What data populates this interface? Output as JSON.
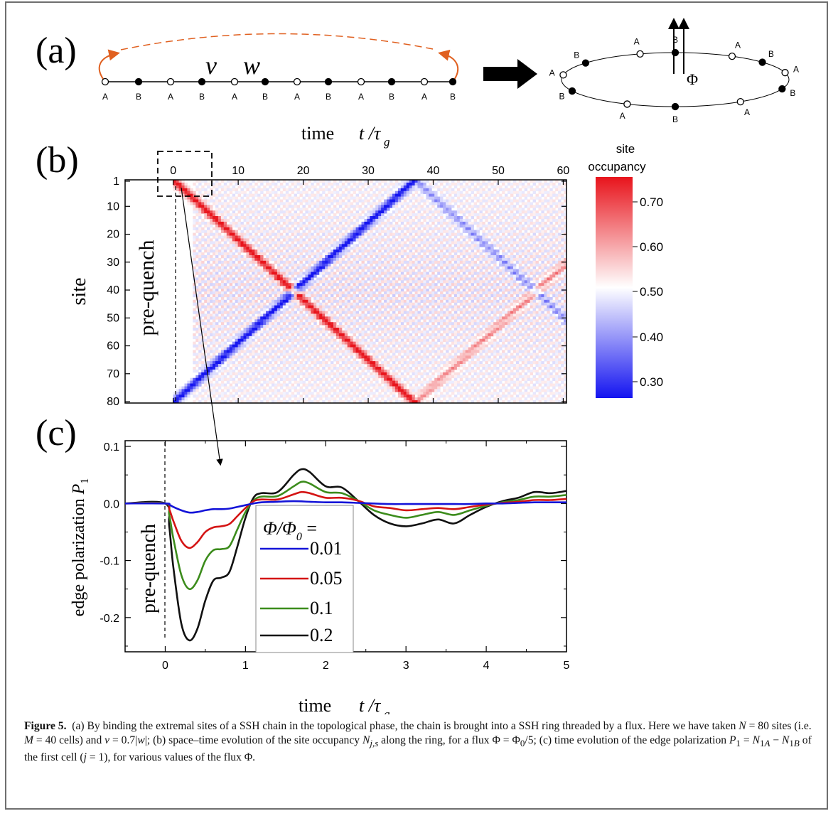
{
  "panel_labels": {
    "a": "(a)",
    "b": "(b)",
    "c": "(c)"
  },
  "panel_a": {
    "chain_sites": [
      "A",
      "B",
      "A",
      "B",
      "A",
      "B",
      "A",
      "B",
      "A",
      "B",
      "A",
      "B"
    ],
    "hopping_v": "v",
    "hopping_w": "w",
    "ring_sites": [
      "B",
      "A",
      "B",
      "A",
      "B",
      "A",
      "A",
      "B",
      "A",
      "B",
      "A",
      "B"
    ],
    "flux_symbol": "Φ"
  },
  "panel_b": {
    "top_axis_title": "time",
    "top_axis_var": "t /τ",
    "top_axis_sub": "g",
    "x_ticks": [
      "0",
      "10",
      "20",
      "30",
      "40",
      "50",
      "60"
    ],
    "y_ticks": [
      "1",
      "10",
      "20",
      "30",
      "40",
      "50",
      "60",
      "70",
      "80"
    ],
    "ylabel": "site",
    "pre_quench_label": "pre-quench",
    "colorbar_title_1": "site",
    "colorbar_title_2": "occupancy",
    "colorbar_ticks": [
      "0.70",
      "0.60",
      "0.50",
      "0.40",
      "0.30"
    ],
    "colors": {
      "high": "#e8141c",
      "mid": "#ffffff",
      "low": "#1414f0"
    }
  },
  "panel_c": {
    "ylabel_text": "edge polarization ",
    "ylabel_var": "P",
    "ylabel_sub": "1",
    "xlabel_text": "time",
    "xlabel_var": "t /τ",
    "xlabel_sub": "g",
    "pre_quench_label": "pre-quench",
    "legend_title_num": "Φ/Φ",
    "legend_title_sub": "0",
    "legend_title_eq": " ="
  },
  "chart_data": {
    "type": "line",
    "x_range": [
      -0.5,
      5
    ],
    "ylim": [
      -0.26,
      0.11
    ],
    "x_ticks": [
      "-1",
      "0",
      "1",
      "2",
      "3",
      "4",
      "5"
    ],
    "y_ticks": [
      "0.1",
      "0.0",
      "-0.1",
      "-0.2"
    ],
    "series": [
      {
        "name": "0.01",
        "color": "#1414d8",
        "x": [
          -0.5,
          0,
          0.05,
          0.1,
          0.2,
          0.3,
          0.4,
          0.5,
          0.6,
          0.7,
          0.8,
          0.9,
          1,
          1.1,
          1.2,
          1.4,
          1.6,
          1.8,
          2,
          2.2,
          2.4,
          2.6,
          2.8,
          3,
          3.2,
          3.4,
          3.6,
          3.8,
          4,
          4.2,
          4.4,
          4.6,
          4.8,
          5
        ],
        "y": [
          0,
          0,
          -0.002,
          -0.006,
          -0.012,
          -0.016,
          -0.015,
          -0.012,
          -0.01,
          -0.01,
          -0.009,
          -0.006,
          -0.003,
          0,
          0.002,
          0.003,
          0.004,
          0.003,
          0.002,
          0.002,
          0.001,
          0,
          -0.001,
          -0.001,
          -0.001,
          -0.001,
          -0.001,
          -0.001,
          0,
          0,
          0.001,
          0.002,
          0.002,
          0.002
        ]
      },
      {
        "name": "0.05",
        "color": "#d41414",
        "x": [
          -0.5,
          0,
          0.05,
          0.1,
          0.2,
          0.3,
          0.4,
          0.5,
          0.6,
          0.7,
          0.8,
          0.9,
          1,
          1.1,
          1.2,
          1.4,
          1.6,
          1.7,
          1.8,
          2,
          2.2,
          2.4,
          2.6,
          2.8,
          3,
          3.2,
          3.4,
          3.6,
          3.8,
          4,
          4.2,
          4.4,
          4.6,
          4.8,
          5
        ],
        "y": [
          0,
          0,
          -0.01,
          -0.03,
          -0.065,
          -0.078,
          -0.068,
          -0.05,
          -0.042,
          -0.04,
          -0.036,
          -0.022,
          -0.008,
          0.004,
          0.007,
          0.007,
          0.016,
          0.02,
          0.018,
          0.01,
          0.01,
          0.005,
          -0.005,
          -0.008,
          -0.012,
          -0.01,
          -0.008,
          -0.01,
          -0.006,
          -0.002,
          0.001,
          0.003,
          0.006,
          0.006,
          0.008
        ]
      },
      {
        "name": "0.1",
        "color": "#3c8c1c",
        "x": [
          -0.5,
          0,
          0.05,
          0.1,
          0.2,
          0.3,
          0.4,
          0.5,
          0.6,
          0.7,
          0.8,
          0.9,
          1,
          1.1,
          1.2,
          1.4,
          1.6,
          1.7,
          1.8,
          2,
          2.2,
          2.4,
          2.6,
          2.8,
          3,
          3.2,
          3.4,
          3.6,
          3.8,
          4,
          4.2,
          4.4,
          4.6,
          4.8,
          5
        ],
        "y": [
          0,
          0,
          -0.02,
          -0.06,
          -0.125,
          -0.15,
          -0.135,
          -0.1,
          -0.082,
          -0.08,
          -0.075,
          -0.045,
          -0.015,
          0.005,
          0.012,
          0.013,
          0.03,
          0.038,
          0.035,
          0.02,
          0.018,
          0.005,
          -0.012,
          -0.02,
          -0.025,
          -0.02,
          -0.015,
          -0.02,
          -0.012,
          -0.004,
          0.002,
          0.006,
          0.012,
          0.012,
          0.015
        ]
      },
      {
        "name": "0.2",
        "color": "#111111",
        "x": [
          -0.5,
          0,
          0.05,
          0.1,
          0.2,
          0.3,
          0.4,
          0.5,
          0.6,
          0.7,
          0.8,
          0.9,
          1,
          1.1,
          1.2,
          1.4,
          1.6,
          1.7,
          1.8,
          2,
          2.2,
          2.4,
          2.6,
          2.8,
          3,
          3.2,
          3.4,
          3.6,
          3.8,
          4,
          4.2,
          4.4,
          4.6,
          4.8,
          5
        ],
        "y": [
          0,
          0,
          -0.04,
          -0.11,
          -0.21,
          -0.24,
          -0.22,
          -0.17,
          -0.135,
          -0.13,
          -0.12,
          -0.075,
          -0.025,
          0.01,
          0.018,
          0.02,
          0.05,
          0.06,
          0.055,
          0.03,
          0.028,
          0.005,
          -0.02,
          -0.035,
          -0.04,
          -0.035,
          -0.028,
          -0.035,
          -0.02,
          -0.006,
          0.004,
          0.01,
          0.02,
          0.018,
          0.022
        ]
      }
    ]
  },
  "caption": {
    "figure_label": "Figure 5.",
    "text_html": "(a) By binding the extremal sites of a SSH chain in the topological phase, the chain is brought into a SSH ring threaded by a flux. Here we have taken <i>N</i> = 80 sites (i.e. <i>M</i> = 40 cells) and <i>v</i> = 0.7|<i>w</i>|; (b) space–time evolution of the site occupancy <i>N<sub>j,s</sub></i> along the ring, for a flux Φ = Φ<sub>0</sub>/5; (c) time evolution of the edge polarization <i>P</i><sub>1</sub> = <i>N</i><sub>1<i>A</i></sub> − <i>N</i><sub>1<i>B</i></sub> of the first cell (<i>j</i> = 1), for various values of the flux Φ."
  }
}
